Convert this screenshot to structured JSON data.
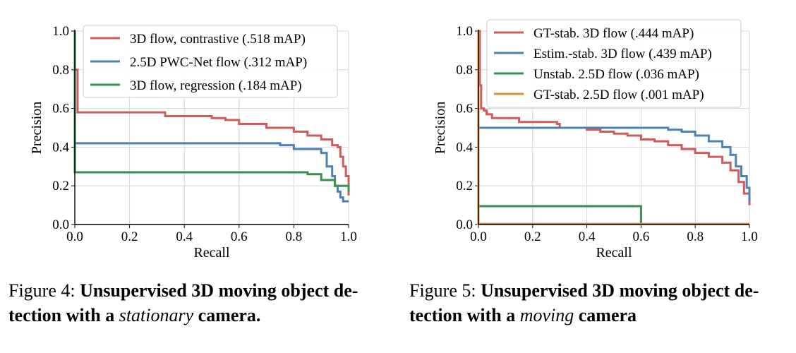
{
  "captions": [
    {
      "label": "Figure 4:",
      "bold_1": "Unsupervised 3D moving object de-",
      "bold_2": "tection with a",
      "italic": "stationary",
      "bold_3": "camera."
    },
    {
      "label": "Figure 5:",
      "bold_1": "Unsupervised 3D moving object de-",
      "bold_2": "tection with a",
      "italic": "moving",
      "bold_3": "camera"
    }
  ],
  "chart_data": [
    {
      "type": "line",
      "title": "",
      "xlabel": "Recall",
      "ylabel": "Precision",
      "xlim": [
        0,
        1
      ],
      "ylim": [
        0,
        1
      ],
      "xticks": [
        "0.0",
        "0.2",
        "0.4",
        "0.6",
        "0.8",
        "1.0"
      ],
      "yticks": [
        "0.0",
        "0.2",
        "0.4",
        "0.6",
        "0.8",
        "1.0"
      ],
      "grid": true,
      "legend_position": "top-right",
      "series": [
        {
          "name": "3D flow, contrastive (.518 mAP)",
          "color": "#cf5b5b",
          "x": [
            0,
            0.01,
            0.01,
            0.02,
            0.3,
            0.33,
            0.5,
            0.55,
            0.6,
            0.7,
            0.8,
            0.85,
            0.9,
            0.94,
            0.96,
            0.97,
            0.98,
            0.99,
            1.0
          ],
          "y": [
            0.8,
            0.8,
            0.58,
            0.58,
            0.58,
            0.56,
            0.55,
            0.54,
            0.52,
            0.5,
            0.48,
            0.46,
            0.44,
            0.41,
            0.4,
            0.35,
            0.3,
            0.25,
            0.15
          ]
        },
        {
          "name": "2.5D PWC-Net flow (.312 mAP)",
          "color": "#4a82b7",
          "x": [
            0,
            0.72,
            0.75,
            0.8,
            0.88,
            0.9,
            0.92,
            0.94,
            0.95,
            0.96,
            0.97,
            0.98,
            1.0
          ],
          "y": [
            0.42,
            0.42,
            0.41,
            0.39,
            0.39,
            0.37,
            0.3,
            0.25,
            0.2,
            0.17,
            0.14,
            0.12,
            0.12
          ]
        },
        {
          "name": "3D flow, regression (.184 mAP)",
          "color": "#3a8e4f",
          "x": [
            0,
            0.0,
            0.8,
            0.85,
            0.9,
            0.95,
            1.0
          ],
          "y": [
            1.0,
            0.27,
            0.27,
            0.26,
            0.23,
            0.2,
            0.17
          ]
        }
      ]
    },
    {
      "type": "line",
      "title": "",
      "xlabel": "Recall",
      "ylabel": "Precision",
      "xlim": [
        0,
        1
      ],
      "ylim": [
        0,
        1
      ],
      "xticks": [
        "0.0",
        "0.2",
        "0.4",
        "0.6",
        "0.8",
        "1.0"
      ],
      "yticks": [
        "0.0",
        "0.2",
        "0.4",
        "0.6",
        "0.8",
        "1.0"
      ],
      "grid": true,
      "legend_position": "top-right",
      "series": [
        {
          "name": "GT-stab. 3D flow (.444 mAP)",
          "color": "#cf5b5b",
          "x": [
            0,
            0.005,
            0.01,
            0.02,
            0.03,
            0.05,
            0.15,
            0.29,
            0.3,
            0.4,
            0.45,
            0.5,
            0.55,
            0.6,
            0.65,
            0.7,
            0.75,
            0.8,
            0.85,
            0.9,
            0.93,
            0.96,
            0.98,
            1.0
          ],
          "y": [
            1.0,
            0.72,
            0.6,
            0.59,
            0.57,
            0.55,
            0.53,
            0.52,
            0.5,
            0.49,
            0.48,
            0.47,
            0.46,
            0.44,
            0.43,
            0.41,
            0.39,
            0.37,
            0.35,
            0.32,
            0.28,
            0.22,
            0.16,
            0.1
          ]
        },
        {
          "name": "Estim.-stab. 3D flow (.439 mAP)",
          "color": "#4a82b7",
          "x": [
            0,
            0.0,
            0.55,
            0.7,
            0.75,
            0.8,
            0.85,
            0.9,
            0.93,
            0.95,
            0.97,
            0.99,
            1.0
          ],
          "y": [
            0.9,
            0.5,
            0.5,
            0.49,
            0.48,
            0.46,
            0.43,
            0.4,
            0.36,
            0.3,
            0.25,
            0.19,
            0.12
          ]
        },
        {
          "name": "Unstab. 2.5D flow (.036 mAP)",
          "color": "#3a8e4f",
          "x": [
            0,
            0.6,
            0.6
          ],
          "y": [
            0.095,
            0.095,
            0.0
          ]
        },
        {
          "name": "GT-stab. 2.5D flow (.001 mAP)",
          "color": "#e08a3c",
          "x": [
            0,
            0.0,
            1.0
          ],
          "y": [
            1.0,
            0.003,
            0.003
          ]
        }
      ]
    }
  ]
}
